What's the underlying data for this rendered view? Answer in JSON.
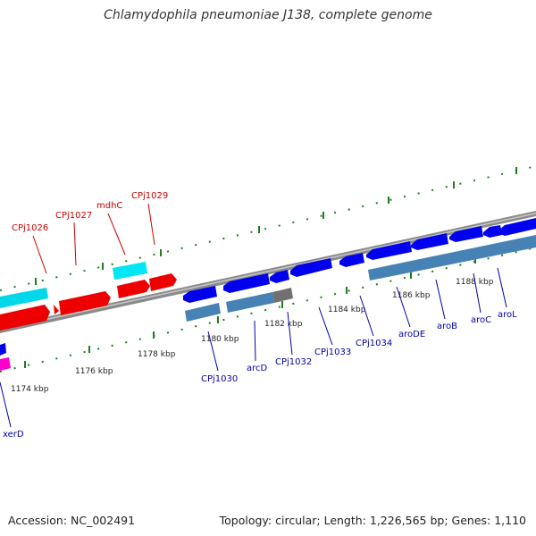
{
  "title": "Chlamydophila pneumoniae J138, complete genome",
  "footer": {
    "accession": "Accession: NC_002491",
    "summary": "Topology: circular; Length: 1,226,565 bp; Genes: 1,110"
  },
  "colors": {
    "backbone": "#8a8a8a",
    "tick": "#1e7d1e",
    "forward_gene": "#ee0000",
    "reverse_gene": "#0000ee",
    "forward_label": "#cc0000",
    "reverse_label": "#0000aa",
    "cyan_feature": "#00e0f0",
    "steelblue_feature": "#4682b4",
    "gray_feature": "#707070",
    "magenta_feature": "#ff00cc"
  },
  "kbp_labels": [
    "1174 kbp",
    "1176 kbp",
    "1178 kbp",
    "1180 kbp",
    "1182 kbp",
    "1184 kbp",
    "1186 kbp",
    "1188 kbp"
  ],
  "forward_gene_labels": [
    "CPj1026",
    "CPj1027",
    "mdhC",
    "CPj1029"
  ],
  "reverse_gene_labels": [
    "xerD",
    "CPj1030",
    "arcD",
    "CPj1032",
    "CPj1033",
    "CPj1034",
    "aroDE",
    "aroB",
    "aroC",
    "aroL"
  ]
}
